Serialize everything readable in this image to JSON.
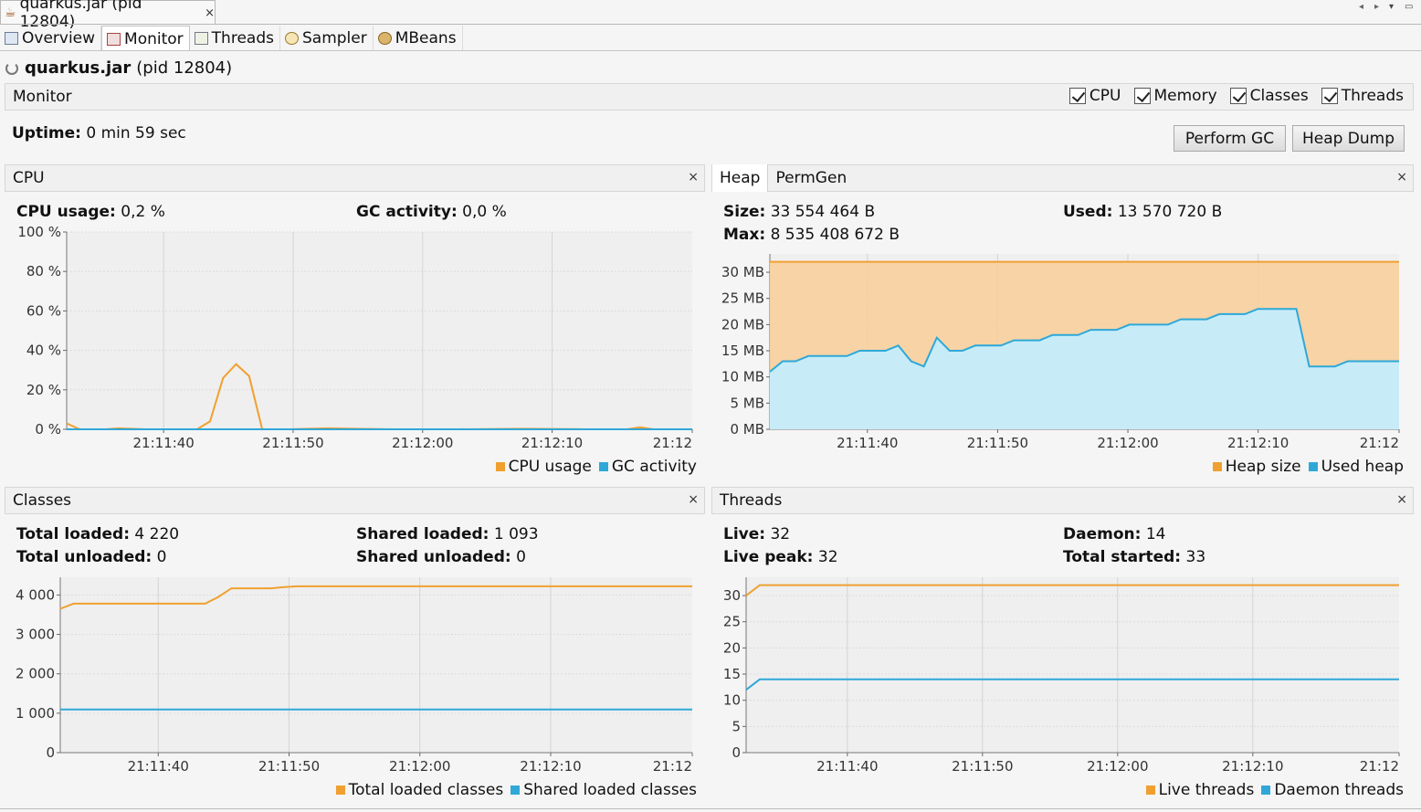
{
  "window": {
    "title": "quarkus.jar (pid 12804)",
    "close_glyph": "×"
  },
  "tabs": [
    {
      "label": "Overview"
    },
    {
      "label": "Monitor"
    },
    {
      "label": "Threads"
    },
    {
      "label": "Sampler"
    },
    {
      "label": "MBeans"
    }
  ],
  "app": {
    "name": "quarkus.jar",
    "pid": "(pid 12804)"
  },
  "monitor_bar": {
    "title": "Monitor",
    "checks": [
      {
        "label": "CPU",
        "checked": true
      },
      {
        "label": "Memory",
        "checked": true
      },
      {
        "label": "Classes",
        "checked": true
      },
      {
        "label": "Threads",
        "checked": true
      }
    ]
  },
  "uptime": {
    "label": "Uptime:",
    "value": "0 min 59 sec"
  },
  "buttons": {
    "gc": "Perform GC",
    "heap_dump": "Heap Dump"
  },
  "panels": {
    "cpu": {
      "title": "CPU",
      "stats": [
        {
          "label": "CPU usage:",
          "value": "0,2 %"
        },
        {
          "label": "GC activity:",
          "value": "0,0 %"
        }
      ]
    },
    "heap": {
      "tabs": [
        "Heap",
        "PermGen"
      ],
      "stats": [
        {
          "label": "Size:",
          "value": "33 554 464 B"
        },
        {
          "label": "Used:",
          "value": "13 570 720 B"
        },
        {
          "label": "Max:",
          "value": "8 535 408 672 B"
        }
      ]
    },
    "classes": {
      "title": "Classes",
      "stats": [
        {
          "label": "Total loaded:",
          "value": "4 220"
        },
        {
          "label": "Shared loaded:",
          "value": "1 093"
        },
        {
          "label": "Total unloaded:",
          "value": "0"
        },
        {
          "label": "Shared unloaded:",
          "value": "0"
        }
      ]
    },
    "threads": {
      "title": "Threads",
      "stats": [
        {
          "label": "Live:",
          "value": "32"
        },
        {
          "label": "Daemon:",
          "value": "14"
        },
        {
          "label": "Live peak:",
          "value": "32"
        },
        {
          "label": "Total started:",
          "value": "33"
        }
      ]
    }
  },
  "colors": {
    "orange": "#f0a030",
    "blue": "#2fa8d8"
  },
  "chart_data": [
    {
      "id": "cpu",
      "type": "line",
      "x_ticks": [
        "21:11:40",
        "21:11:50",
        "21:12:00",
        "21:12:10",
        "21:12"
      ],
      "y_ticks": [
        "0 %",
        "20 %",
        "40 %",
        "60 %",
        "80 %",
        "100 %"
      ],
      "ylim": [
        0,
        100
      ],
      "grid": true,
      "legend": "bottom-right",
      "series": [
        {
          "name": "CPU usage",
          "color": "#f0a030",
          "x": [
            0,
            1,
            3,
            4,
            6,
            8,
            10,
            11,
            12,
            13,
            14,
            15,
            17,
            20,
            25,
            30,
            35,
            40,
            43,
            44,
            45,
            48
          ],
          "y": [
            3,
            0,
            0,
            0.5,
            0,
            0,
            0,
            4,
            26,
            33,
            27,
            0,
            0,
            0.5,
            0,
            0,
            0.3,
            0,
            0,
            1,
            0,
            0
          ]
        },
        {
          "name": "GC activity",
          "color": "#2fa8d8",
          "x": [
            0,
            48
          ],
          "y": [
            0,
            0
          ]
        }
      ]
    },
    {
      "id": "heap",
      "type": "area",
      "x_ticks": [
        "21:11:40",
        "21:11:50",
        "21:12:00",
        "21:12:10",
        "21:12"
      ],
      "y_ticks": [
        "0 MB",
        "5 MB",
        "10 MB",
        "15 MB",
        "20 MB",
        "25 MB",
        "30 MB"
      ],
      "ylim": [
        0,
        33.5
      ],
      "grid": true,
      "legend": "bottom-right",
      "series": [
        {
          "name": "Heap size",
          "color": "#f0a030",
          "x": [
            0,
            49
          ],
          "y": [
            32,
            32
          ]
        },
        {
          "name": "Used heap",
          "color": "#2fa8d8",
          "x": [
            0,
            1,
            2,
            3,
            4,
            5,
            6,
            7,
            8,
            9,
            10,
            11,
            12,
            13,
            14,
            15,
            16,
            17,
            18,
            19,
            20,
            21,
            22,
            23,
            24,
            25,
            26,
            27,
            28,
            29,
            30,
            31,
            32,
            33,
            34,
            35,
            36,
            37,
            38,
            39,
            40,
            41,
            42,
            43,
            44,
            45,
            46,
            47,
            48,
            49
          ],
          "y": [
            11,
            13,
            13,
            14,
            14,
            14,
            14,
            15,
            15,
            15,
            16,
            13,
            12,
            17.5,
            15,
            15,
            16,
            16,
            16,
            17,
            17,
            17,
            18,
            18,
            18,
            19,
            19,
            19,
            20,
            20,
            20,
            20,
            21,
            21,
            21,
            22,
            22,
            22,
            23,
            23,
            23,
            23,
            12,
            12,
            12,
            13,
            13,
            13,
            13,
            13
          ]
        }
      ]
    },
    {
      "id": "classes",
      "type": "line",
      "x_ticks": [
        "21:11:40",
        "21:11:50",
        "21:12:00",
        "21:12:10",
        "21:12"
      ],
      "y_ticks": [
        "0",
        "1 000",
        "2 000",
        "3 000",
        "4 000"
      ],
      "ylim": [
        0,
        4450
      ],
      "grid": true,
      "legend": "bottom-right",
      "series": [
        {
          "name": "Total loaded classes",
          "color": "#f0a030",
          "x": [
            0,
            1,
            5,
            10,
            11,
            12,
            13,
            16,
            17,
            18,
            48
          ],
          "y": [
            3650,
            3780,
            3780,
            3780,
            3780,
            3950,
            4170,
            4170,
            4200,
            4220,
            4220
          ]
        },
        {
          "name": "Shared loaded classes",
          "color": "#2fa8d8",
          "x": [
            0,
            48
          ],
          "y": [
            1093,
            1093
          ]
        }
      ]
    },
    {
      "id": "threads",
      "type": "line",
      "x_ticks": [
        "21:11:40",
        "21:11:50",
        "21:12:00",
        "21:12:10",
        "21:12"
      ],
      "y_ticks": [
        "0",
        "5",
        "10",
        "15",
        "20",
        "25",
        "30"
      ],
      "ylim": [
        0,
        33.5
      ],
      "grid": true,
      "legend": "bottom-right",
      "series": [
        {
          "name": "Live threads",
          "color": "#f0a030",
          "x": [
            0,
            1,
            48
          ],
          "y": [
            30,
            32,
            32
          ]
        },
        {
          "name": "Daemon threads",
          "color": "#2fa8d8",
          "x": [
            0,
            1,
            48
          ],
          "y": [
            12,
            14,
            14
          ]
        }
      ]
    }
  ]
}
